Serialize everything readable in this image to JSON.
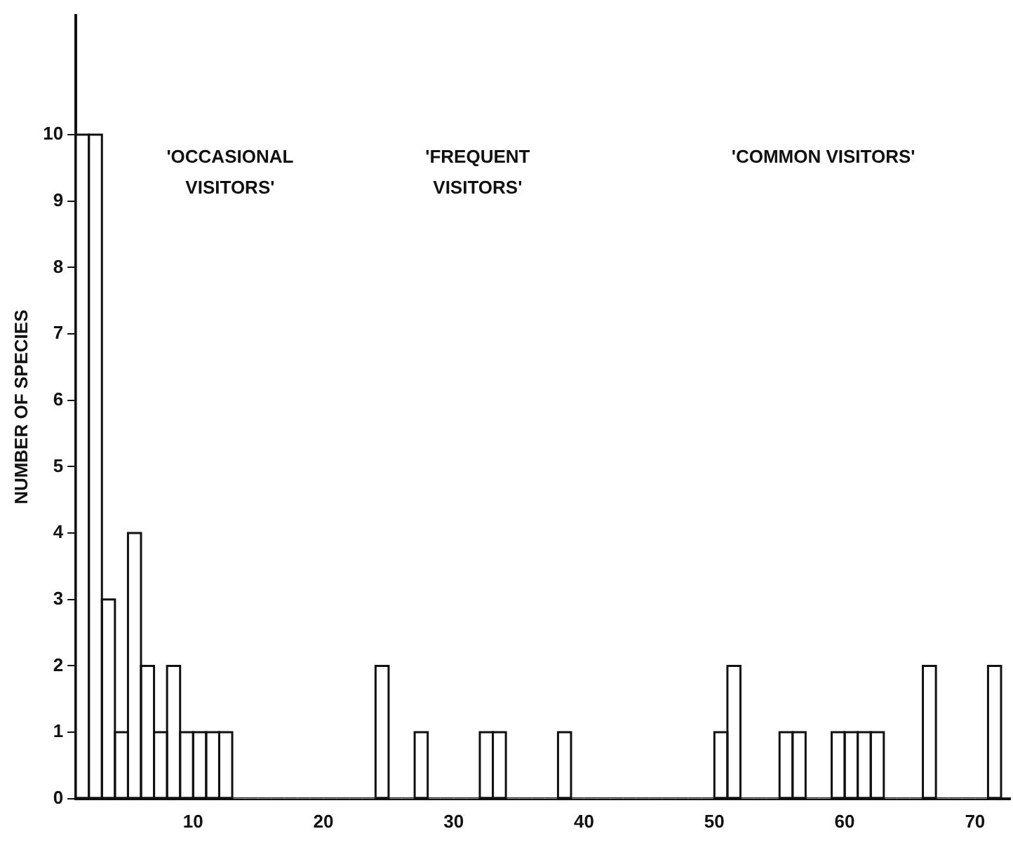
{
  "chart_data": {
    "type": "histogram",
    "ylabel": "NUMBER OF SPECIES",
    "bins": [
      1,
      2,
      3,
      4,
      5,
      6,
      7,
      8,
      9,
      10,
      11,
      12,
      13,
      14,
      15,
      16,
      17,
      18,
      19,
      20,
      21,
      22,
      23,
      24,
      25,
      26,
      27,
      28,
      29,
      30,
      31,
      32,
      33,
      34,
      35,
      36,
      37,
      38,
      39,
      40,
      41,
      42,
      43,
      44,
      45,
      46,
      47,
      48,
      49,
      50,
      51,
      52,
      53,
      54,
      55,
      56,
      57,
      58,
      59,
      60,
      61,
      62,
      63,
      64,
      65,
      66,
      67,
      68,
      69,
      70,
      71,
      72
    ],
    "values": [
      10,
      10,
      3,
      1,
      4,
      2,
      1,
      2,
      1,
      1,
      1,
      1,
      0,
      0,
      0,
      0,
      0,
      0,
      0,
      0,
      0,
      0,
      0,
      2,
      0,
      0,
      1,
      0,
      0,
      0,
      0,
      1,
      1,
      0,
      0,
      0,
      0,
      1,
      0,
      0,
      0,
      0,
      0,
      0,
      0,
      0,
      0,
      0,
      0,
      1,
      2,
      0,
      0,
      0,
      1,
      1,
      0,
      0,
      1,
      1,
      1,
      1,
      0,
      0,
      0,
      2,
      0,
      0,
      0,
      0,
      2
    ],
    "color": "#ffffff",
    "xlim": [
      1,
      72.7
    ],
    "xticks": [
      10,
      20,
      30,
      40,
      50,
      60,
      70
    ],
    "ylim": [
      0,
      11.8
    ],
    "yticks": [
      0,
      1,
      2,
      3,
      4,
      5,
      6,
      7,
      8,
      9,
      10
    ],
    "grid": false,
    "legend": false,
    "annotations": [
      "'OCCASIONAL\nVISITORS'",
      "'FREQUENT\nVISITORS'",
      "'COMMON VISITORS'"
    ]
  }
}
